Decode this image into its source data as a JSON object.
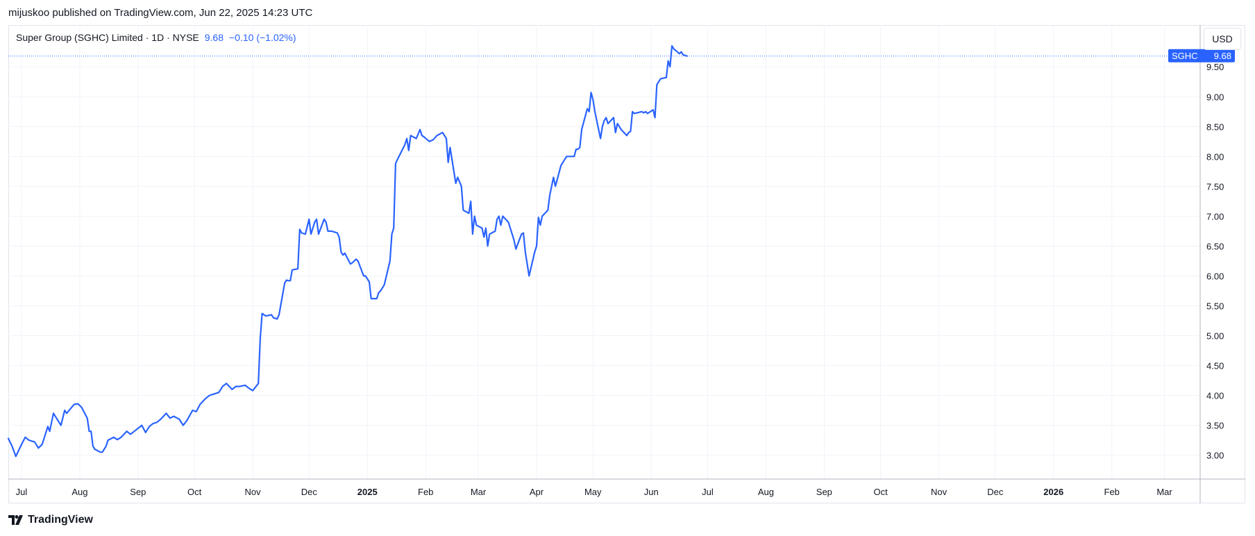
{
  "published_line": "mijuskoo published on TradingView.com, Jun 22, 2025 14:23 UTC",
  "legend": {
    "symbol_text": "Super Group (SGHC) Limited · 1D · NYSE",
    "price": "9.68",
    "change": "−0.10 (−1.02%)"
  },
  "currency_button": "USD",
  "price_tag": {
    "symbol": "SGHC",
    "value": "9.68"
  },
  "brand": {
    "name": "TradingView",
    "icon": "tradingview-logo-icon"
  },
  "colors": {
    "line": "#2962ff",
    "grid": "#f0f3fa",
    "axis_text": "#131722",
    "tag_bg": "#2962ff"
  },
  "chart_data": {
    "type": "line",
    "title": "",
    "xlabel": "",
    "ylabel": "",
    "x_range": [
      "2024-06-24",
      "2026-03-20"
    ],
    "ylim": [
      2.6,
      10.2
    ],
    "y_ticks": [
      "3.00",
      "3.50",
      "4.00",
      "4.50",
      "5.00",
      "5.50",
      "6.00",
      "6.50",
      "7.00",
      "7.50",
      "8.00",
      "8.50",
      "9.00",
      "9.50"
    ],
    "x_ticks": [
      {
        "label": "Jul",
        "date": "2024-07-01",
        "bold": false
      },
      {
        "label": "Aug",
        "date": "2024-08-01",
        "bold": false
      },
      {
        "label": "Sep",
        "date": "2024-09-01",
        "bold": false
      },
      {
        "label": "Oct",
        "date": "2024-10-01",
        "bold": false
      },
      {
        "label": "Nov",
        "date": "2024-11-01",
        "bold": false
      },
      {
        "label": "Dec",
        "date": "2024-12-01",
        "bold": false
      },
      {
        "label": "2025",
        "date": "2025-01-01",
        "bold": true
      },
      {
        "label": "Feb",
        "date": "2025-02-01",
        "bold": false
      },
      {
        "label": "Mar",
        "date": "2025-03-01",
        "bold": false
      },
      {
        "label": "Apr",
        "date": "2025-04-01",
        "bold": false
      },
      {
        "label": "May",
        "date": "2025-05-01",
        "bold": false
      },
      {
        "label": "Jun",
        "date": "2025-06-01",
        "bold": false
      },
      {
        "label": "Jul",
        "date": "2025-07-01",
        "bold": false
      },
      {
        "label": "Aug",
        "date": "2025-08-01",
        "bold": false
      },
      {
        "label": "Sep",
        "date": "2025-09-01",
        "bold": false
      },
      {
        "label": "Oct",
        "date": "2025-10-01",
        "bold": false
      },
      {
        "label": "Nov",
        "date": "2025-11-01",
        "bold": false
      },
      {
        "label": "Dec",
        "date": "2025-12-01",
        "bold": false
      },
      {
        "label": "2026",
        "date": "2026-01-01",
        "bold": true
      },
      {
        "label": "Feb",
        "date": "2026-02-01",
        "bold": false
      },
      {
        "label": "Mar",
        "date": "2026-03-01",
        "bold": false
      }
    ],
    "last_value": 9.68,
    "series": [
      {
        "points": [
          [
            "2024-06-24",
            3.28
          ],
          [
            "2024-06-26",
            3.15
          ],
          [
            "2024-06-28",
            2.98
          ],
          [
            "2024-07-01",
            3.18
          ],
          [
            "2024-07-03",
            3.3
          ],
          [
            "2024-07-05",
            3.25
          ],
          [
            "2024-07-08",
            3.22
          ],
          [
            "2024-07-10",
            3.12
          ],
          [
            "2024-07-12",
            3.18
          ],
          [
            "2024-07-15",
            3.48
          ],
          [
            "2024-07-16",
            3.4
          ],
          [
            "2024-07-18",
            3.7
          ],
          [
            "2024-07-20",
            3.6
          ],
          [
            "2024-07-22",
            3.5
          ],
          [
            "2024-07-24",
            3.75
          ],
          [
            "2024-07-25",
            3.7
          ],
          [
            "2024-07-29",
            3.85
          ],
          [
            "2024-07-31",
            3.86
          ],
          [
            "2024-08-02",
            3.8
          ],
          [
            "2024-08-05",
            3.62
          ],
          [
            "2024-08-06",
            3.4
          ],
          [
            "2024-08-07",
            3.4
          ],
          [
            "2024-08-08",
            3.15
          ],
          [
            "2024-08-09",
            3.1
          ],
          [
            "2024-08-12",
            3.05
          ],
          [
            "2024-08-13",
            3.05
          ],
          [
            "2024-08-15",
            3.15
          ],
          [
            "2024-08-16",
            3.25
          ],
          [
            "2024-08-19",
            3.3
          ],
          [
            "2024-08-21",
            3.26
          ],
          [
            "2024-08-23",
            3.3
          ],
          [
            "2024-08-26",
            3.4
          ],
          [
            "2024-08-28",
            3.35
          ],
          [
            "2024-08-30",
            3.4
          ],
          [
            "2024-09-03",
            3.5
          ],
          [
            "2024-09-05",
            3.38
          ],
          [
            "2024-09-07",
            3.48
          ],
          [
            "2024-09-09",
            3.53
          ],
          [
            "2024-09-11",
            3.55
          ],
          [
            "2024-09-13",
            3.6
          ],
          [
            "2024-09-16",
            3.7
          ],
          [
            "2024-09-18",
            3.62
          ],
          [
            "2024-09-20",
            3.65
          ],
          [
            "2024-09-23",
            3.6
          ],
          [
            "2024-09-25",
            3.5
          ],
          [
            "2024-09-27",
            3.58
          ],
          [
            "2024-09-30",
            3.75
          ],
          [
            "2024-10-02",
            3.73
          ],
          [
            "2024-10-04",
            3.85
          ],
          [
            "2024-10-07",
            3.95
          ],
          [
            "2024-10-09",
            4.0
          ],
          [
            "2024-10-11",
            4.02
          ],
          [
            "2024-10-14",
            4.05
          ],
          [
            "2024-10-16",
            4.15
          ],
          [
            "2024-10-18",
            4.2
          ],
          [
            "2024-10-21",
            4.1
          ],
          [
            "2024-10-23",
            4.15
          ],
          [
            "2024-10-25",
            4.15
          ],
          [
            "2024-10-28",
            4.17
          ],
          [
            "2024-10-30",
            4.12
          ],
          [
            "2024-11-01",
            4.08
          ],
          [
            "2024-11-04",
            4.2
          ],
          [
            "2024-11-05",
            4.95
          ],
          [
            "2024-11-06",
            5.37
          ],
          [
            "2024-11-08",
            5.33
          ],
          [
            "2024-11-11",
            5.35
          ],
          [
            "2024-11-12",
            5.3
          ],
          [
            "2024-11-14",
            5.28
          ],
          [
            "2024-11-15",
            5.35
          ],
          [
            "2024-11-18",
            5.88
          ],
          [
            "2024-11-19",
            5.93
          ],
          [
            "2024-11-20",
            5.92
          ],
          [
            "2024-11-21",
            5.92
          ],
          [
            "2024-11-22",
            6.1
          ],
          [
            "2024-11-25",
            6.12
          ],
          [
            "2024-11-26",
            6.78
          ],
          [
            "2024-11-27",
            6.72
          ],
          [
            "2024-11-29",
            6.7
          ],
          [
            "2024-12-01",
            6.95
          ],
          [
            "2024-12-02",
            6.7
          ],
          [
            "2024-12-03",
            6.8
          ],
          [
            "2024-12-04",
            6.9
          ],
          [
            "2024-12-05",
            6.95
          ],
          [
            "2024-12-06",
            6.7
          ],
          [
            "2024-12-09",
            6.95
          ],
          [
            "2024-12-10",
            6.9
          ],
          [
            "2024-12-11",
            6.75
          ],
          [
            "2024-12-13",
            6.75
          ],
          [
            "2024-12-16",
            6.72
          ],
          [
            "2024-12-17",
            6.65
          ],
          [
            "2024-12-18",
            6.4
          ],
          [
            "2024-12-19",
            6.35
          ],
          [
            "2024-12-20",
            6.38
          ],
          [
            "2024-12-23",
            6.2
          ],
          [
            "2024-12-24",
            6.22
          ],
          [
            "2024-12-26",
            6.28
          ],
          [
            "2024-12-27",
            6.25
          ],
          [
            "2024-12-30",
            6.0
          ],
          [
            "2024-12-31",
            6.0
          ],
          [
            "2025-01-02",
            5.9
          ],
          [
            "2025-01-03",
            5.62
          ],
          [
            "2025-01-06",
            5.62
          ],
          [
            "2025-01-07",
            5.72
          ],
          [
            "2025-01-08",
            5.75
          ],
          [
            "2025-01-10",
            5.85
          ],
          [
            "2025-01-13",
            6.25
          ],
          [
            "2025-01-14",
            6.7
          ],
          [
            "2025-01-15",
            6.8
          ],
          [
            "2025-01-16",
            7.88
          ],
          [
            "2025-01-17",
            7.95
          ],
          [
            "2025-01-21",
            8.2
          ],
          [
            "2025-01-22",
            8.3
          ],
          [
            "2025-01-23",
            8.1
          ],
          [
            "2025-01-24",
            8.35
          ],
          [
            "2025-01-27",
            8.3
          ],
          [
            "2025-01-29",
            8.45
          ],
          [
            "2025-01-30",
            8.35
          ],
          [
            "2025-01-31",
            8.33
          ],
          [
            "2025-02-03",
            8.25
          ],
          [
            "2025-02-05",
            8.28
          ],
          [
            "2025-02-07",
            8.35
          ],
          [
            "2025-02-10",
            8.4
          ],
          [
            "2025-02-12",
            8.3
          ],
          [
            "2025-02-13",
            7.9
          ],
          [
            "2025-02-14",
            8.15
          ],
          [
            "2025-02-17",
            7.55
          ],
          [
            "2025-02-18",
            7.65
          ],
          [
            "2025-02-20",
            7.5
          ],
          [
            "2025-02-21",
            7.1
          ],
          [
            "2025-02-24",
            7.05
          ],
          [
            "2025-02-25",
            7.25
          ],
          [
            "2025-02-26",
            6.7
          ],
          [
            "2025-02-27",
            7.0
          ],
          [
            "2025-02-28",
            6.85
          ],
          [
            "2025-03-03",
            6.8
          ],
          [
            "2025-03-04",
            6.65
          ],
          [
            "2025-03-05",
            6.8
          ],
          [
            "2025-03-06",
            6.5
          ],
          [
            "2025-03-07",
            6.7
          ],
          [
            "2025-03-10",
            6.75
          ],
          [
            "2025-03-11",
            6.95
          ],
          [
            "2025-03-12",
            7.0
          ],
          [
            "2025-03-13",
            6.85
          ],
          [
            "2025-03-14",
            7.0
          ],
          [
            "2025-03-17",
            6.9
          ],
          [
            "2025-03-18",
            6.8
          ],
          [
            "2025-03-19",
            6.7
          ],
          [
            "2025-03-20",
            6.6
          ],
          [
            "2025-03-21",
            6.45
          ],
          [
            "2025-03-24",
            6.7
          ],
          [
            "2025-03-25",
            6.72
          ],
          [
            "2025-03-26",
            6.4
          ],
          [
            "2025-03-27",
            6.2
          ],
          [
            "2025-03-28",
            6.0
          ],
          [
            "2025-03-31",
            6.4
          ],
          [
            "2025-04-01",
            6.5
          ],
          [
            "2025-04-02",
            6.98
          ],
          [
            "2025-04-03",
            6.85
          ],
          [
            "2025-04-04",
            7.0
          ],
          [
            "2025-04-07",
            7.1
          ],
          [
            "2025-04-08",
            7.35
          ],
          [
            "2025-04-09",
            7.5
          ],
          [
            "2025-04-10",
            7.65
          ],
          [
            "2025-04-11",
            7.5
          ],
          [
            "2025-04-14",
            7.85
          ],
          [
            "2025-04-15",
            7.9
          ],
          [
            "2025-04-16",
            7.95
          ],
          [
            "2025-04-17",
            8.0
          ],
          [
            "2025-04-21",
            8.0
          ],
          [
            "2025-04-22",
            8.12
          ],
          [
            "2025-04-23",
            8.12
          ],
          [
            "2025-04-24",
            8.15
          ],
          [
            "2025-04-25",
            8.45
          ],
          [
            "2025-04-28",
            8.8
          ],
          [
            "2025-04-29",
            8.75
          ],
          [
            "2025-04-30",
            9.07
          ],
          [
            "2025-05-01",
            8.95
          ],
          [
            "2025-05-02",
            8.75
          ],
          [
            "2025-05-05",
            8.3
          ],
          [
            "2025-05-06",
            8.5
          ],
          [
            "2025-05-07",
            8.6
          ],
          [
            "2025-05-08",
            8.65
          ],
          [
            "2025-05-09",
            8.55
          ],
          [
            "2025-05-12",
            8.65
          ],
          [
            "2025-05-13",
            8.4
          ],
          [
            "2025-05-14",
            8.55
          ],
          [
            "2025-05-15",
            8.5
          ],
          [
            "2025-05-16",
            8.45
          ],
          [
            "2025-05-19",
            8.35
          ],
          [
            "2025-05-20",
            8.4
          ],
          [
            "2025-05-21",
            8.42
          ],
          [
            "2025-05-22",
            8.75
          ],
          [
            "2025-05-23",
            8.72
          ],
          [
            "2025-05-27",
            8.75
          ],
          [
            "2025-05-28",
            8.73
          ],
          [
            "2025-05-29",
            8.75
          ],
          [
            "2025-05-30",
            8.72
          ],
          [
            "2025-06-02",
            8.78
          ],
          [
            "2025-06-03",
            8.65
          ],
          [
            "2025-06-04",
            9.2
          ],
          [
            "2025-06-05",
            9.25
          ],
          [
            "2025-06-06",
            9.3
          ],
          [
            "2025-06-09",
            9.32
          ],
          [
            "2025-06-10",
            9.6
          ],
          [
            "2025-06-11",
            9.5
          ],
          [
            "2025-06-12",
            9.85
          ],
          [
            "2025-06-13",
            9.8
          ],
          [
            "2025-06-16",
            9.72
          ],
          [
            "2025-06-17",
            9.75
          ],
          [
            "2025-06-18",
            9.7
          ],
          [
            "2025-06-20",
            9.68
          ]
        ]
      }
    ]
  }
}
